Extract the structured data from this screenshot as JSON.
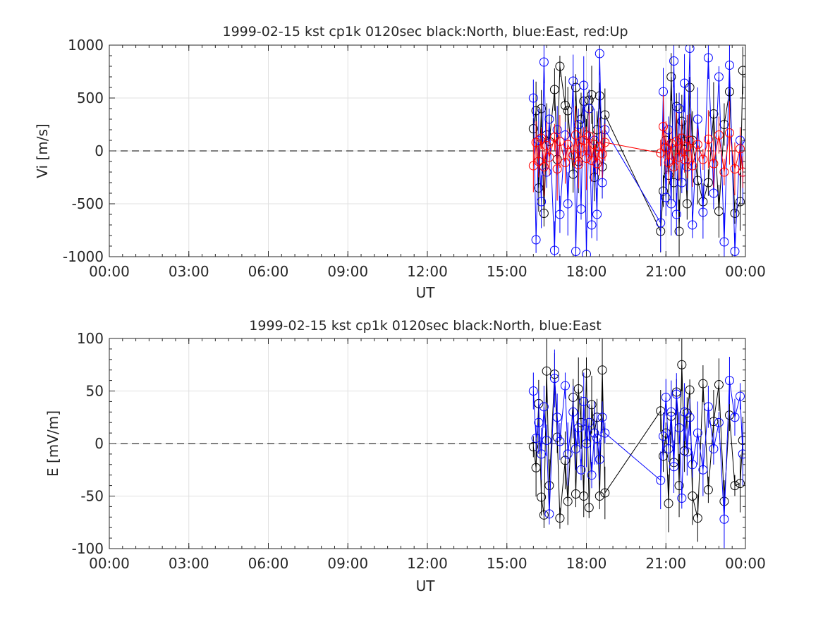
{
  "chart_data": [
    {
      "type": "scatter",
      "title": "1999-02-15 kst cp1k 0120sec black:North, blue:East, red:Up",
      "xlabel": "UT",
      "ylabel": "Vi [m/s]",
      "xlim": [
        0,
        24
      ],
      "ylim": [
        -1000,
        1000
      ],
      "x_tick_labels": [
        "00:00",
        "03:00",
        "06:00",
        "09:00",
        "12:00",
        "15:00",
        "18:00",
        "21:00",
        "00:00"
      ],
      "y_tick_labels": [
        "-1000",
        "-500",
        "0",
        "500",
        "1000"
      ],
      "y_tick_values": [
        -1000,
        -500,
        0,
        500,
        1000
      ],
      "zero_line": "dashed",
      "grid": true,
      "error_bars": true,
      "series": [
        {
          "name": "North",
          "color": "#000000",
          "x": [
            16.0,
            16.1,
            16.2,
            16.3,
            16.4,
            16.5,
            16.6,
            16.8,
            16.9,
            17.0,
            17.2,
            17.3,
            17.5,
            17.6,
            17.7,
            17.8,
            17.9,
            18.0,
            18.1,
            18.2,
            18.3,
            18.4,
            18.5,
            18.6,
            18.7,
            20.8,
            20.9,
            21.0,
            21.1,
            21.2,
            21.3,
            21.4,
            21.5,
            21.6,
            21.7,
            21.8,
            21.9,
            22.0,
            22.2,
            22.4,
            22.6,
            22.8,
            23.0,
            23.2,
            23.4,
            23.6,
            23.8,
            23.9
          ],
          "y": [
            210,
            380,
            -350,
            400,
            -590,
            150,
            90,
            580,
            -80,
            800,
            430,
            380,
            -220,
            600,
            -100,
            300,
            470,
            150,
            480,
            530,
            -250,
            200,
            520,
            -150,
            340,
            -760,
            -380,
            100,
            -230,
            700,
            -300,
            420,
            -760,
            280,
            90,
            -500,
            600,
            100,
            -280,
            -480,
            -300,
            350,
            -570,
            250,
            560,
            -590,
            -480,
            760
          ]
        },
        {
          "name": "East",
          "color": "#0000ff",
          "x": [
            16.0,
            16.1,
            16.2,
            16.3,
            16.4,
            16.5,
            16.6,
            16.8,
            16.9,
            17.0,
            17.2,
            17.3,
            17.5,
            17.6,
            17.7,
            17.8,
            17.9,
            18.0,
            18.1,
            18.2,
            18.3,
            18.4,
            18.5,
            18.6,
            18.7,
            20.8,
            20.9,
            21.0,
            21.1,
            21.2,
            21.3,
            21.4,
            21.5,
            21.6,
            21.7,
            21.8,
            21.9,
            22.0,
            22.2,
            22.4,
            22.6,
            22.8,
            23.0,
            23.2,
            23.4,
            23.6,
            23.8,
            23.9
          ],
          "y": [
            500,
            -840,
            100,
            -480,
            840,
            -200,
            300,
            -940,
            200,
            -600,
            150,
            -500,
            660,
            -950,
            250,
            -550,
            620,
            -980,
            400,
            -700,
            100,
            -600,
            920,
            -300,
            200,
            -680,
            560,
            -440,
            200,
            -500,
            850,
            -600,
            400,
            -300,
            640,
            -150,
            970,
            -700,
            300,
            -580,
            880,
            -400,
            700,
            -860,
            810,
            -950,
            100,
            -200
          ]
        },
        {
          "name": "Up",
          "color": "#ff0000",
          "x": [
            16.0,
            16.1,
            16.2,
            16.3,
            16.4,
            16.5,
            16.6,
            16.8,
            16.9,
            17.0,
            17.2,
            17.3,
            17.5,
            17.6,
            17.7,
            17.8,
            17.9,
            18.0,
            18.1,
            18.2,
            18.3,
            18.4,
            18.5,
            18.6,
            18.7,
            20.8,
            20.9,
            21.0,
            21.1,
            21.2,
            21.3,
            21.4,
            21.5,
            21.6,
            21.7,
            21.8,
            21.9,
            22.0,
            22.2,
            22.4,
            22.6,
            22.8,
            23.0,
            23.2,
            23.4,
            23.6,
            23.8,
            23.9
          ],
          "y": [
            -140,
            80,
            -100,
            120,
            -150,
            50,
            -60,
            130,
            -170,
            90,
            -110,
            60,
            -40,
            150,
            -130,
            30,
            100,
            -70,
            140,
            -90,
            60,
            -120,
            40,
            -30,
            80,
            -20,
            230,
            30,
            -110,
            70,
            -150,
            90,
            -60,
            120,
            -80,
            40,
            100,
            -140,
            60,
            -80,
            110,
            -120,
            150,
            -200,
            170,
            -170,
            20,
            -200
          ]
        }
      ]
    },
    {
      "type": "scatter",
      "title": "1999-02-15 kst cp1k 0120sec black:North, blue:East",
      "xlabel": "UT",
      "ylabel": "E [mV/m]",
      "xlim": [
        0,
        24
      ],
      "ylim": [
        -100,
        100
      ],
      "x_tick_labels": [
        "00:00",
        "03:00",
        "06:00",
        "09:00",
        "12:00",
        "15:00",
        "18:00",
        "21:00",
        "00:00"
      ],
      "y_tick_labels": [
        "-100",
        "-50",
        "0",
        "50",
        "100"
      ],
      "y_tick_values": [
        -100,
        -50,
        0,
        50,
        100
      ],
      "zero_line": "dashed",
      "grid": true,
      "error_bars": true,
      "series": [
        {
          "name": "North",
          "color": "#000000",
          "x": [
            16.0,
            16.1,
            16.2,
            16.3,
            16.4,
            16.5,
            16.6,
            16.8,
            16.9,
            17.0,
            17.2,
            17.3,
            17.5,
            17.6,
            17.7,
            17.8,
            17.9,
            18.0,
            18.1,
            18.2,
            18.3,
            18.4,
            18.5,
            18.6,
            18.7,
            20.8,
            20.9,
            21.0,
            21.1,
            21.2,
            21.3,
            21.4,
            21.5,
            21.6,
            21.7,
            21.8,
            21.9,
            22.0,
            22.2,
            22.4,
            22.6,
            22.8,
            23.0,
            23.2,
            23.4,
            23.6,
            23.8,
            23.9
          ],
          "y": [
            -3,
            -23,
            38,
            -51,
            -68,
            69,
            -40,
            66,
            6,
            -71,
            -16,
            -55,
            44,
            -48,
            52,
            20,
            -50,
            67,
            -61,
            37,
            10,
            25,
            -50,
            70,
            -47,
            31,
            -12,
            10,
            -57,
            26,
            -18,
            49,
            -40,
            75,
            -7,
            29,
            51,
            -50,
            -71,
            57,
            -44,
            21,
            56,
            -55,
            27,
            -40,
            -38,
            3
          ]
        },
        {
          "name": "East",
          "color": "#0000ff",
          "x": [
            16.0,
            16.1,
            16.2,
            16.3,
            16.4,
            16.5,
            16.6,
            16.8,
            16.9,
            17.0,
            17.2,
            17.3,
            17.5,
            17.6,
            17.7,
            17.8,
            17.9,
            18.0,
            18.1,
            18.2,
            18.3,
            18.4,
            18.5,
            18.6,
            18.7,
            20.8,
            20.9,
            21.0,
            21.1,
            21.2,
            21.3,
            21.4,
            21.5,
            21.6,
            21.7,
            21.8,
            21.9,
            22.0,
            22.2,
            22.4,
            22.6,
            22.8,
            23.0,
            23.2,
            23.4,
            23.6,
            23.8,
            23.9
          ],
          "y": [
            50,
            5,
            20,
            -10,
            35,
            3,
            -67,
            62,
            25,
            2,
            55,
            -10,
            30,
            -5,
            15,
            -25,
            40,
            0,
            20,
            -30,
            10,
            5,
            -15,
            25,
            10,
            -35,
            7,
            44,
            -5,
            30,
            -22,
            47,
            15,
            -52,
            30,
            -8,
            25,
            -20,
            10,
            -25,
            35,
            -5,
            20,
            -72,
            60,
            25,
            45,
            -10
          ]
        }
      ]
    }
  ]
}
